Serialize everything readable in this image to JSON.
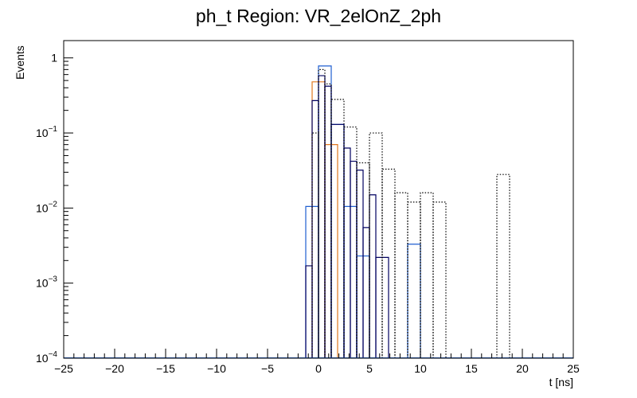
{
  "chart_data": {
    "type": "histogram",
    "title": "ph_t Region: VR_2elOnZ_2ph",
    "xlabel": "t [ns]",
    "ylabel": "Events",
    "xlim": [
      -25,
      25
    ],
    "ylim": [
      0.0001,
      1.7
    ],
    "log_y": true,
    "bin_width": 1.25,
    "grid": false,
    "x_ticks": [
      -25,
      -20,
      -15,
      -10,
      -5,
      0,
      5,
      10,
      15,
      20,
      25
    ],
    "y_ticks": [
      {
        "base": "10",
        "exp": "-4",
        "value": 0.0001
      },
      {
        "base": "10",
        "exp": "-3",
        "value": 0.001
      },
      {
        "base": "10",
        "exp": "-2",
        "value": 0.01
      },
      {
        "base": "10",
        "exp": "-1",
        "value": 0.1
      },
      {
        "base": "1",
        "exp": "",
        "value": 1
      }
    ],
    "series": [
      {
        "color": "#1F5FD0",
        "style": "solid",
        "bins": [
          {
            "x": [
              -1.25,
              0
            ],
            "y": 0.0105
          },
          {
            "x": [
              0,
              1.25
            ],
            "y": 0.78
          },
          {
            "x": [
              1.25,
              2.5
            ],
            "y": 0.13
          },
          {
            "x": [
              2.5,
              3.75
            ],
            "y": 0.0105
          },
          {
            "x": [
              3.75,
              5
            ],
            "y": 0.0023
          },
          {
            "x": [
              8.75,
              10
            ],
            "y": 0.0033
          }
        ]
      },
      {
        "color": "#E07820",
        "style": "solid",
        "bins": [
          {
            "x": [
              -0.625,
              0.625
            ],
            "y": 0.48
          },
          {
            "x": [
              0.625,
              1.875
            ],
            "y": 0.07
          }
        ]
      },
      {
        "color": "#000060",
        "style": "solid",
        "bins": [
          {
            "x": [
              -1.25,
              -0.625
            ],
            "y": 0.0017
          },
          {
            "x": [
              -0.625,
              0
            ],
            "y": 0.27
          },
          {
            "x": [
              0,
              0.625
            ],
            "y": 0.58
          },
          {
            "x": [
              0.625,
              1.25
            ],
            "y": 0.42
          },
          {
            "x": [
              1.25,
              2.5
            ],
            "y": 0.13
          },
          {
            "x": [
              2.5,
              3.125
            ],
            "y": 0.063
          },
          {
            "x": [
              3.125,
              3.75
            ],
            "y": 0.042
          },
          {
            "x": [
              3.75,
              4.375
            ],
            "y": 0.032
          },
          {
            "x": [
              4.375,
              5
            ],
            "y": 0.0055
          },
          {
            "x": [
              5,
              5.625
            ],
            "y": 0.015
          },
          {
            "x": [
              5.625,
              6.875
            ],
            "y": 0.0022
          }
        ]
      },
      {
        "color": "#000000",
        "style": "dotted",
        "bins": [
          {
            "x": [
              -0.625,
              0
            ],
            "y": 0.1
          },
          {
            "x": [
              0,
              0.625
            ],
            "y": 0.7
          },
          {
            "x": [
              0.625,
              1.25
            ],
            "y": 0.45
          },
          {
            "x": [
              1.25,
              2.5
            ],
            "y": 0.28
          },
          {
            "x": [
              2.5,
              3.75
            ],
            "y": 0.12
          },
          {
            "x": [
              3.75,
              5
            ],
            "y": 0.04
          },
          {
            "x": [
              5,
              6.25
            ],
            "y": 0.1
          },
          {
            "x": [
              6.25,
              7.5
            ],
            "y": 0.033
          },
          {
            "x": [
              7.5,
              8.75
            ],
            "y": 0.016
          },
          {
            "x": [
              8.75,
              10
            ],
            "y": 0.012
          },
          {
            "x": [
              10,
              11.25
            ],
            "y": 0.016
          },
          {
            "x": [
              11.25,
              12.5
            ],
            "y": 0.012
          },
          {
            "x": [
              17.5,
              18.75
            ],
            "y": 0.028
          }
        ]
      }
    ]
  }
}
